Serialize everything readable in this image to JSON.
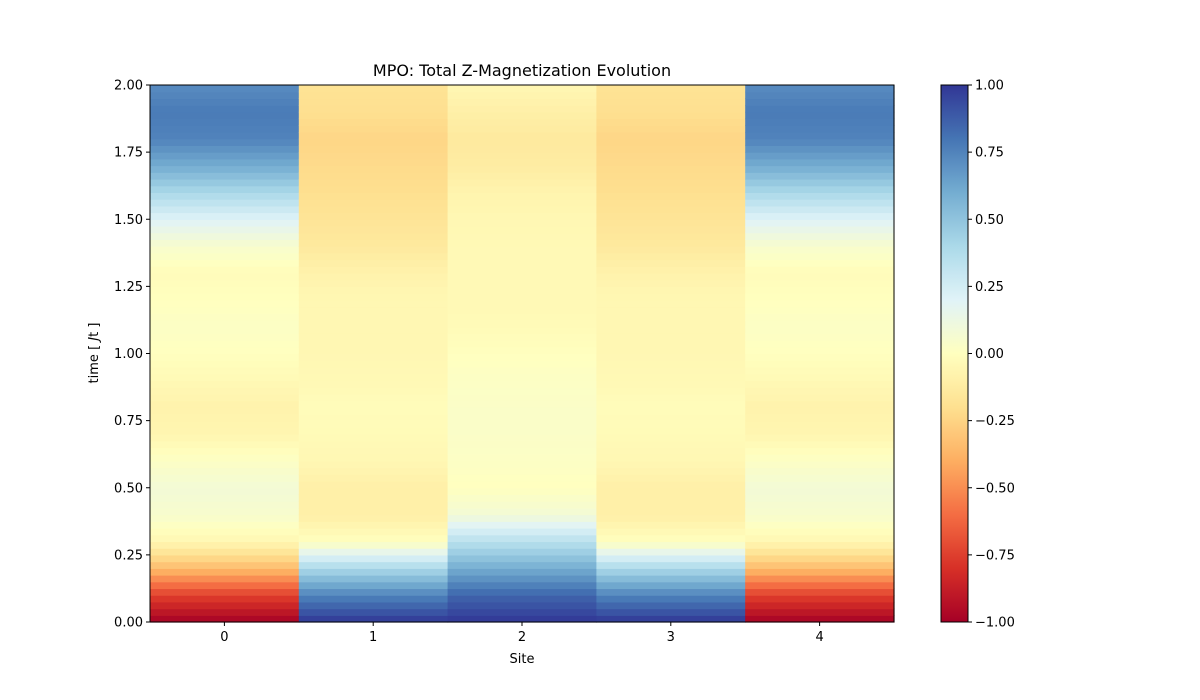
{
  "chart_data": {
    "type": "heatmap",
    "title": "MPO: Total Z-Magnetization Evolution",
    "xlabel": "Site",
    "ylabel_prefix": "time [ ",
    "ylabel_var": "J",
    "ylabel_suffix": "t ]",
    "x_categories": [
      0,
      1,
      2,
      3,
      4
    ],
    "x_tick_labels": [
      "0",
      "1",
      "2",
      "3",
      "4"
    ],
    "ylim": [
      0,
      2
    ],
    "y_ticks": [
      0,
      0.25,
      0.5,
      0.75,
      1.0,
      1.25,
      1.5,
      1.75,
      2.0
    ],
    "y_tick_labels": [
      "0.00",
      "0.25",
      "0.50",
      "0.75",
      "1.00",
      "1.25",
      "1.50",
      "1.75",
      "2.00"
    ],
    "colormap": "RdYlBu",
    "color_range": [
      -1,
      1
    ],
    "colorbar_ticks": [
      1,
      0.75,
      0.5,
      0.25,
      0,
      -0.25,
      -0.5,
      -0.75,
      -1
    ],
    "colorbar_tick_labels": [
      "1.00",
      "0.75",
      "0.50",
      "0.25",
      "0.00",
      "−0.25",
      "−0.50",
      "−0.75",
      "−1.00"
    ],
    "time_steps": [
      0,
      0.1,
      0.2,
      0.3,
      0.4,
      0.5,
      0.6,
      0.7,
      0.8,
      0.9,
      1.0,
      1.1,
      1.2,
      1.3,
      1.4,
      1.5,
      1.6,
      1.7,
      1.8,
      1.9,
      2.0
    ],
    "series": [
      {
        "site": 0,
        "values": [
          -1.0,
          -0.75,
          -0.35,
          -0.05,
          0.05,
          0.08,
          0.02,
          -0.06,
          -0.08,
          -0.04,
          0.0,
          0.02,
          0.0,
          -0.02,
          0.05,
          0.2,
          0.4,
          0.6,
          0.75,
          0.78,
          0.72
        ]
      },
      {
        "site": 1,
        "values": [
          1.0,
          0.75,
          0.4,
          0.0,
          -0.1,
          -0.1,
          -0.05,
          -0.03,
          -0.02,
          -0.04,
          -0.05,
          -0.05,
          -0.05,
          -0.08,
          -0.14,
          -0.17,
          -0.2,
          -0.22,
          -0.24,
          -0.2,
          -0.18
        ]
      },
      {
        "site": 2,
        "values": [
          1.0,
          0.85,
          0.6,
          0.35,
          0.08,
          0.0,
          0.02,
          0.03,
          0.03,
          0.02,
          0.0,
          -0.03,
          -0.04,
          -0.04,
          -0.04,
          -0.05,
          -0.07,
          -0.12,
          -0.14,
          -0.1,
          -0.05
        ]
      },
      {
        "site": 3,
        "values": [
          1.0,
          0.75,
          0.4,
          0.0,
          -0.1,
          -0.1,
          -0.05,
          -0.03,
          -0.02,
          -0.04,
          -0.05,
          -0.05,
          -0.05,
          -0.08,
          -0.14,
          -0.17,
          -0.2,
          -0.22,
          -0.24,
          -0.2,
          -0.18
        ]
      },
      {
        "site": 4,
        "values": [
          -1.0,
          -0.75,
          -0.35,
          -0.05,
          0.05,
          0.08,
          0.02,
          -0.06,
          -0.08,
          -0.04,
          0.0,
          0.02,
          0.0,
          -0.02,
          0.05,
          0.2,
          0.4,
          0.6,
          0.75,
          0.78,
          0.72
        ]
      }
    ]
  }
}
